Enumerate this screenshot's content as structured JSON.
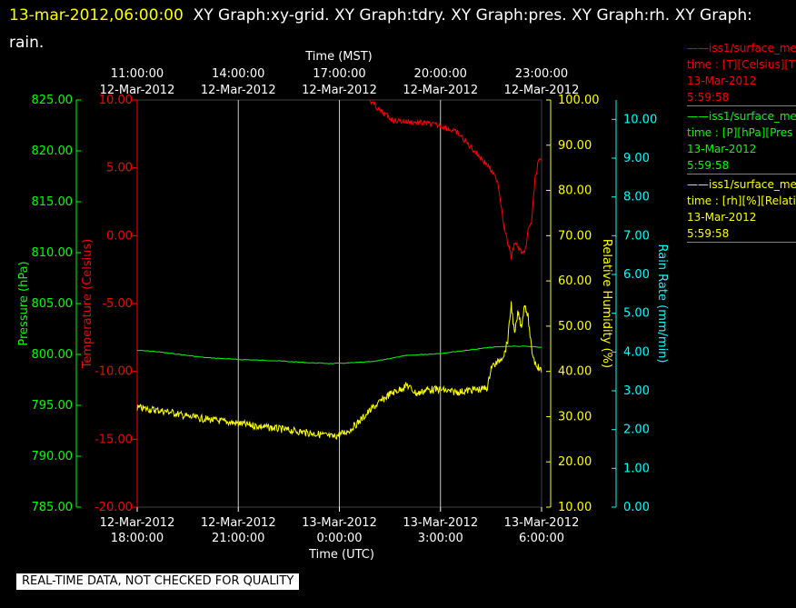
{
  "header": {
    "timestamp": "13-mar-2012,06:00:00",
    "graphs_text": "XY Graph:xy-grid.  XY Graph:tdry.  XY Graph:pres.  XY Graph:rh.  XY Graph:",
    "graphs_text_2": "rain."
  },
  "banner": "REAL-TIME DATA, NOT CHECKED FOR QUALITY",
  "legend": [
    {
      "line1": "——iss1/surface_me",
      "line2": "time : [T][Celsius][T",
      "line3": "13-Mar-2012",
      "line4": "5:59:58",
      "color": "#ff0000"
    },
    {
      "line1": "——iss1/surface_me",
      "line2": "time : [P][hPa][Pres",
      "line3": "13-Mar-2012",
      "line4": "5:59:58",
      "color": "#00ff00"
    },
    {
      "line1": "——iss1/surface_me",
      "line2": "time : [rh][%][Relati",
      "line3": "13-Mar-2012",
      "line4": "5:59:58",
      "color": "#ffff00"
    }
  ],
  "chart_data": {
    "type": "line",
    "x_top_label": "Time (MST)",
    "x_bottom_label": "Time (UTC)",
    "x_range_hours": [
      0,
      12
    ],
    "top_ticks": [
      {
        "t": 2,
        "line1": "11:00:00",
        "line2": "12-Mar-2012"
      },
      {
        "t": 5,
        "line1": "14:00:00",
        "line2": "12-Mar-2012"
      },
      {
        "t": 8,
        "line1": "17:00:00",
        "line2": "12-Mar-2012"
      },
      {
        "t": 11,
        "line1": "20:00:00",
        "line2": "12-Mar-2012"
      },
      {
        "t": 14,
        "line1": "23:00:00",
        "line2": "12-Mar-2012"
      }
    ],
    "bottom_ticks": [
      {
        "t": 0,
        "line1": "12-Mar-2012",
        "line2": "18:00:00"
      },
      {
        "t": 3,
        "line1": "12-Mar-2012",
        "line2": "21:00:00"
      },
      {
        "t": 6,
        "line1": "13-Mar-2012",
        "line2": "0:00:00"
      },
      {
        "t": 9,
        "line1": "13-Mar-2012",
        "line2": "3:00:00"
      },
      {
        "t": 12,
        "line1": "13-Mar-2012",
        "line2": "6:00:00"
      }
    ],
    "grid": true,
    "axes": {
      "pressure": {
        "label": "Pressure (hPa)",
        "min": 785,
        "max": 825,
        "ticks": [
          "785.00",
          "790.00",
          "795.00",
          "800.00",
          "805.00",
          "810.00",
          "815.00",
          "820.00",
          "825.00"
        ],
        "color": "#00ff00"
      },
      "temperature": {
        "label": "Temperature (Celsius)",
        "min": -20,
        "max": 10,
        "ticks": [
          "-20.00",
          "-15.00",
          "-10.00",
          "-5.00",
          "0.00",
          "5.00",
          "10.00"
        ],
        "color": "#ff0000"
      },
      "humidity": {
        "label": "Relative Humidity (%)",
        "min": 10,
        "max": 100,
        "ticks": [
          "10.00",
          "20.00",
          "30.00",
          "40.00",
          "50.00",
          "60.00",
          "70.00",
          "80.00",
          "90.00",
          "100.00"
        ],
        "color": "#ffff00"
      },
      "rain": {
        "label": "Rain Rate (mm/min)",
        "min": 0,
        "max": 10.5,
        "ticks": [
          "0.00",
          "1.00",
          "2.00",
          "3.00",
          "4.00",
          "5.00",
          "6.00",
          "7.00",
          "8.00",
          "9.00",
          "10.00"
        ],
        "color": "#00ffff"
      }
    },
    "series": [
      {
        "axis": "temperature",
        "color": "#ff0000",
        "x": [
          6.9,
          7.2,
          7.6,
          8.0,
          8.5,
          9.0,
          9.5,
          9.8,
          10.1,
          10.4,
          10.7,
          10.9,
          11.1,
          11.2,
          11.4,
          11.5,
          11.6,
          11.7,
          11.8,
          11.9,
          12.0
        ],
        "y": [
          10.0,
          9.2,
          8.5,
          8.4,
          8.3,
          8.1,
          7.6,
          6.8,
          6.0,
          5.2,
          4.0,
          0.5,
          -1.6,
          -0.5,
          -1.2,
          -1.4,
          0.4,
          1.0,
          4.0,
          5.5,
          5.5
        ]
      },
      {
        "axis": "pressure",
        "color": "#00ff00",
        "x": [
          0,
          0.5,
          1.0,
          2.0,
          3.0,
          4.0,
          5.0,
          5.8,
          6.5,
          7.0,
          7.5,
          8.0,
          8.5,
          9.0,
          9.5,
          10.0,
          10.5,
          11.0,
          11.5,
          12.0
        ],
        "y": [
          800.4,
          800.3,
          800.1,
          799.7,
          799.5,
          799.4,
          799.2,
          799.1,
          799.2,
          799.3,
          799.6,
          799.9,
          800.0,
          800.1,
          800.3,
          800.5,
          800.7,
          800.8,
          800.8,
          800.7
        ]
      },
      {
        "axis": "humidity",
        "color": "#ffff00",
        "x": [
          0,
          0.5,
          1.0,
          1.5,
          2.0,
          2.5,
          3.0,
          3.5,
          4.0,
          4.5,
          5.0,
          5.5,
          5.8,
          6.0,
          6.3,
          6.6,
          7.0,
          7.5,
          7.8,
          8.0,
          8.3,
          8.6,
          9.0,
          9.3,
          9.6,
          10.0,
          10.2,
          10.4,
          10.5,
          10.7,
          10.9,
          11.0,
          11.1,
          11.2,
          11.3,
          11.4,
          11.5,
          11.6,
          11.7,
          11.8,
          11.9,
          12.0
        ],
        "y": [
          32.0,
          31.5,
          31.0,
          30.0,
          29.5,
          29.0,
          28.5,
          28.0,
          27.5,
          27.0,
          26.5,
          26.0,
          25.5,
          26.0,
          27.0,
          29.0,
          32.0,
          35.0,
          36.0,
          37.0,
          35.0,
          36.0,
          36.0,
          35.5,
          35.5,
          36.0,
          36.0,
          36.5,
          41.0,
          42.0,
          44.0,
          47.0,
          55.0,
          48.0,
          53.0,
          50.0,
          55.0,
          52.0,
          45.0,
          42.0,
          41.0,
          40.0
        ]
      }
    ],
    "rain_series": {
      "axis": "rain",
      "x": [
        0,
        12
      ],
      "y": [
        0,
        0
      ]
    }
  }
}
